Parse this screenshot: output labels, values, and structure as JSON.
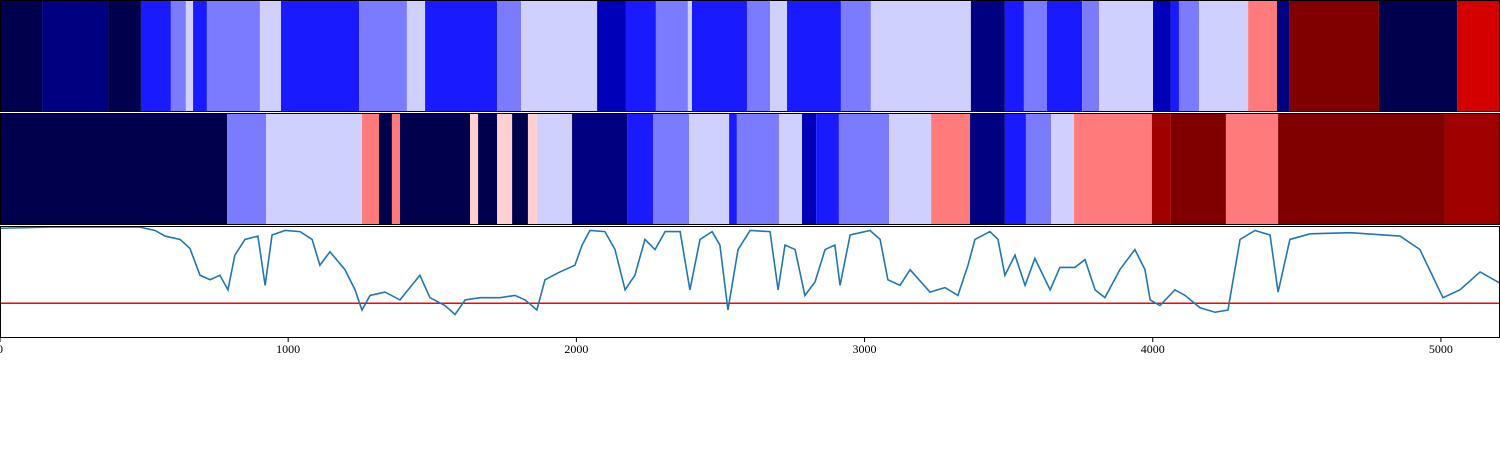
{
  "chart_data": [
    {
      "type": "strip",
      "xlim": [
        0,
        5205
      ],
      "edges": [
        0,
        146,
        375,
        489,
        593,
        645,
        670,
        718,
        902,
        975,
        1246,
        1412,
        1475,
        1725,
        1808,
        2072,
        2172,
        2276,
        2387,
        2401,
        2592,
        2672,
        2731,
        2918,
        3022,
        3369,
        3487,
        3553,
        3633,
        3755,
        3814,
        4001,
        4063,
        4091,
        4161,
        4331,
        4431,
        4473,
        4785,
        5056,
        5205
      ],
      "values": [
        -5,
        -4,
        -5,
        -2,
        -1,
        0,
        -2,
        -1,
        0,
        -2,
        -1,
        0,
        -2,
        -1,
        0,
        -3,
        -2,
        -1,
        0,
        -2,
        -1,
        0,
        -2,
        -1,
        0,
        -4,
        -2,
        -1,
        -2,
        -1,
        0,
        -3,
        -2,
        -1,
        0,
        2,
        -4,
        5,
        -5,
        3
      ],
      "levels": [
        -5,
        -4,
        -3,
        -2,
        -1,
        0,
        1,
        2,
        3,
        4,
        5
      ],
      "colors": [
        "#00004c",
        "#000080",
        "#0000b8",
        "#1a1aff",
        "#7b7bff",
        "#d0d0ff",
        "#ffd0d0",
        "#ff7b7b",
        "#d40000",
        "#a00000",
        "#800000"
      ]
    },
    {
      "type": "strip",
      "xlim": [
        0,
        5205
      ],
      "edges": [
        0,
        788,
        923,
        1256,
        1315,
        1360,
        1388,
        1631,
        1659,
        1725,
        1777,
        1832,
        1863,
        1985,
        2176,
        2266,
        2391,
        2530,
        2557,
        2703,
        2783,
        2832,
        2911,
        3085,
        3231,
        3366,
        3487,
        3560,
        3647,
        3727,
        3997,
        4063,
        4254,
        4435,
        5014,
        5205
      ],
      "values": [
        -5,
        -1,
        0,
        2,
        -5,
        2,
        -5,
        1,
        -5,
        1,
        -5,
        1,
        0,
        -4,
        -2,
        -1,
        0,
        -2,
        -1,
        0,
        -3,
        -2,
        -1,
        0,
        2,
        -4,
        -2,
        -1,
        0,
        2,
        4,
        5,
        2,
        5,
        4
      ],
      "levels": [
        -5,
        -4,
        -3,
        -2,
        -1,
        0,
        1,
        2,
        3,
        4,
        5
      ],
      "colors": [
        "#00004c",
        "#000080",
        "#0000b8",
        "#1a1aff",
        "#7b7bff",
        "#d0d0ff",
        "#ffd0d0",
        "#ff7b7b",
        "#d40000",
        "#a00000",
        "#800000"
      ]
    },
    {
      "type": "line",
      "xlim": [
        0,
        5205
      ],
      "ylim": [
        0,
        1
      ],
      "xticks": [
        0,
        1000,
        2000,
        3000,
        4000,
        5000
      ],
      "threshold": 0.31,
      "threshold_color": "#ff0000",
      "x": [
        0,
        174,
        347,
        486,
        538,
        573,
        625,
        659,
        694,
        729,
        763,
        791,
        815,
        850,
        895,
        920,
        944,
        989,
        1041,
        1083,
        1110,
        1145,
        1197,
        1232,
        1256,
        1284,
        1336,
        1388,
        1457,
        1492,
        1544,
        1579,
        1614,
        1666,
        1735,
        1787,
        1822,
        1863,
        1891,
        1943,
        1995,
        2020,
        2047,
        2099,
        2134,
        2169,
        2203,
        2238,
        2273,
        2308,
        2360,
        2394,
        2429,
        2471,
        2498,
        2526,
        2561,
        2603,
        2672,
        2700,
        2724,
        2759,
        2793,
        2828,
        2863,
        2897,
        2915,
        2950,
        3019,
        3054,
        3081,
        3123,
        3158,
        3227,
        3279,
        3324,
        3359,
        3383,
        3435,
        3463,
        3487,
        3522,
        3557,
        3591,
        3644,
        3678,
        3730,
        3765,
        3800,
        3834,
        3886,
        3938,
        3973,
        3991,
        4025,
        4077,
        4112,
        4164,
        4216,
        4261,
        4303,
        4355,
        4407,
        4435,
        4476,
        4546,
        4685,
        4858,
        4927,
        5007,
        5066,
        5136,
        5205
      ],
      "series": [
        {
          "color": "#1f77b4",
          "values": [
            0.98,
            0.99,
            0.99,
            0.99,
            0.96,
            0.91,
            0.88,
            0.8,
            0.56,
            0.52,
            0.56,
            0.43,
            0.74,
            0.88,
            0.91,
            0.47,
            0.92,
            0.96,
            0.95,
            0.88,
            0.65,
            0.77,
            0.61,
            0.43,
            0.25,
            0.38,
            0.41,
            0.34,
            0.56,
            0.36,
            0.29,
            0.21,
            0.34,
            0.36,
            0.36,
            0.38,
            0.34,
            0.25,
            0.52,
            0.59,
            0.65,
            0.83,
            0.96,
            0.95,
            0.79,
            0.43,
            0.56,
            0.88,
            0.79,
            0.95,
            0.95,
            0.43,
            0.88,
            0.95,
            0.83,
            0.25,
            0.79,
            0.96,
            0.95,
            0.43,
            0.83,
            0.79,
            0.38,
            0.5,
            0.79,
            0.83,
            0.47,
            0.92,
            0.96,
            0.88,
            0.52,
            0.47,
            0.61,
            0.41,
            0.45,
            0.38,
            0.65,
            0.88,
            0.95,
            0.88,
            0.56,
            0.74,
            0.47,
            0.71,
            0.43,
            0.63,
            0.63,
            0.7,
            0.43,
            0.36,
            0.61,
            0.79,
            0.61,
            0.34,
            0.29,
            0.43,
            0.38,
            0.27,
            0.23,
            0.25,
            0.88,
            0.96,
            0.92,
            0.41,
            0.88,
            0.93,
            0.94,
            0.91,
            0.79,
            0.36,
            0.43,
            0.59,
            0.49
          ]
        }
      ]
    }
  ]
}
